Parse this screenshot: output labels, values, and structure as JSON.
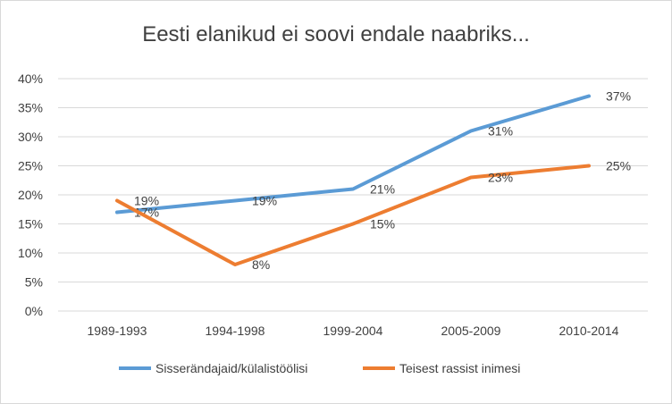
{
  "chart_data": {
    "type": "line",
    "title": "Eesti elanikud ei soovi endale naabriks...",
    "xlabel": "",
    "ylabel": "",
    "categories": [
      "1989-1993",
      "1994-1998",
      "1999-2004",
      "2005-2009",
      "2010-2014"
    ],
    "ylim": [
      0,
      40
    ],
    "yticks": [
      0,
      5,
      10,
      15,
      20,
      25,
      30,
      35,
      40
    ],
    "ytick_labels": [
      "0%",
      "5%",
      "10%",
      "15%",
      "20%",
      "25%",
      "30%",
      "35%",
      "40%"
    ],
    "value_suffix": "%",
    "grid": true,
    "legend_position": "bottom",
    "series": [
      {
        "name": "Sisserändajaid/külalistöölisi",
        "color": "#5b9bd5",
        "values": [
          17,
          19,
          21,
          31,
          37
        ]
      },
      {
        "name": "Teisest rassist inimesi",
        "color": "#ed7d31",
        "values": [
          19,
          8,
          15,
          23,
          25
        ]
      }
    ],
    "gridline_color": "#d9d9d9"
  }
}
